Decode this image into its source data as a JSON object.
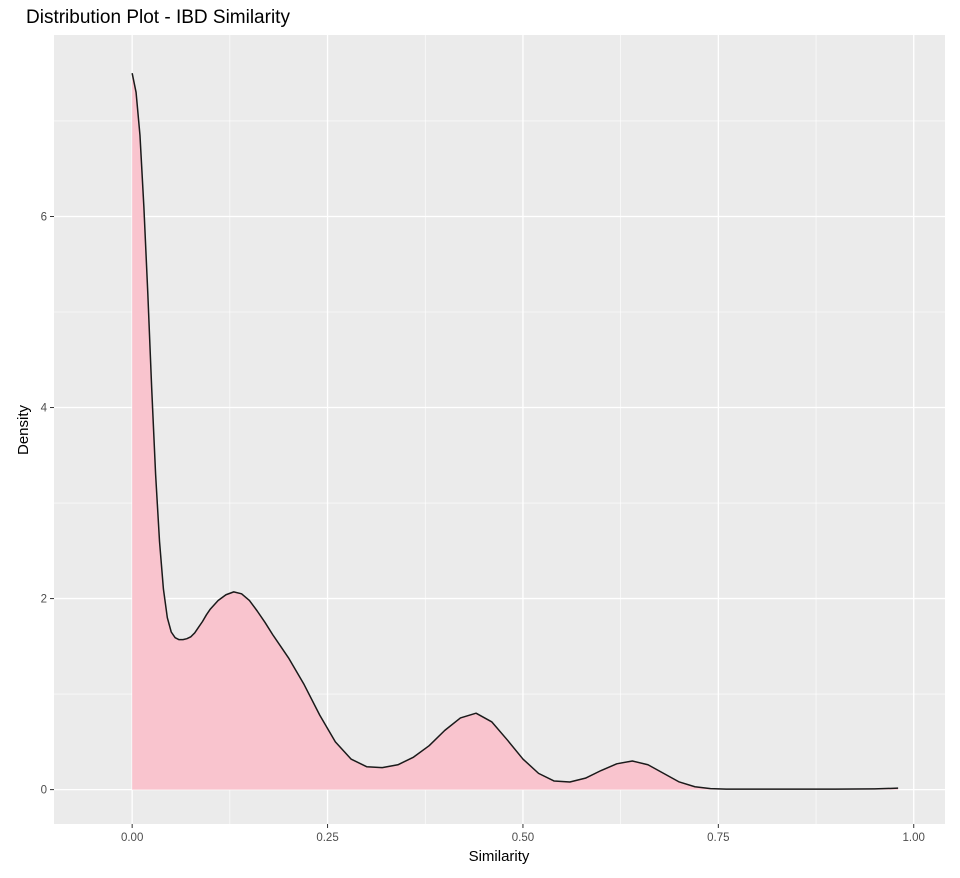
{
  "chart_data": {
    "type": "area",
    "title": "Distribution Plot - IBD Similarity",
    "xlabel": "Similarity",
    "ylabel": "Density",
    "xlim": [
      -0.1,
      1.04
    ],
    "ylim": [
      -0.36,
      7.9
    ],
    "x_ticks": [
      {
        "value": 0,
        "label": "0.00"
      },
      {
        "value": 0.25,
        "label": "0.25"
      },
      {
        "value": 0.5,
        "label": "0.50"
      },
      {
        "value": 0.75,
        "label": "0.75"
      },
      {
        "value": 1.0,
        "label": "1.00"
      }
    ],
    "y_ticks": [
      {
        "value": 0,
        "label": "0"
      },
      {
        "value": 2,
        "label": "2"
      },
      {
        "value": 4,
        "label": "4"
      },
      {
        "value": 6,
        "label": "6"
      }
    ],
    "grid": true,
    "fill_color": "#f9c4ce",
    "line_color": "#1a1a1a",
    "panel_color": "#ebebeb",
    "grid_color": "#ffffff",
    "series": [
      {
        "x": [
          0.0,
          0.005,
          0.01,
          0.015,
          0.02,
          0.025,
          0.03,
          0.035,
          0.04,
          0.045,
          0.05,
          0.055,
          0.06,
          0.065,
          0.07,
          0.075,
          0.08,
          0.085,
          0.09,
          0.095,
          0.1,
          0.11,
          0.12,
          0.13,
          0.14,
          0.15,
          0.16,
          0.17,
          0.18,
          0.19,
          0.2,
          0.22,
          0.24,
          0.26,
          0.28,
          0.3,
          0.32,
          0.34,
          0.36,
          0.38,
          0.4,
          0.42,
          0.44,
          0.46,
          0.48,
          0.5,
          0.52,
          0.54,
          0.56,
          0.58,
          0.6,
          0.62,
          0.64,
          0.66,
          0.68,
          0.7,
          0.72,
          0.74,
          0.76,
          0.8,
          0.85,
          0.9,
          0.95,
          0.98
        ],
        "y": [
          7.5,
          7.3,
          6.85,
          6.1,
          5.2,
          4.2,
          3.3,
          2.6,
          2.1,
          1.8,
          1.65,
          1.59,
          1.57,
          1.57,
          1.58,
          1.6,
          1.64,
          1.7,
          1.76,
          1.83,
          1.89,
          1.98,
          2.04,
          2.07,
          2.05,
          1.98,
          1.87,
          1.75,
          1.62,
          1.5,
          1.38,
          1.1,
          0.78,
          0.5,
          0.32,
          0.24,
          0.23,
          0.26,
          0.34,
          0.46,
          0.62,
          0.75,
          0.8,
          0.71,
          0.52,
          0.32,
          0.17,
          0.09,
          0.08,
          0.12,
          0.2,
          0.27,
          0.3,
          0.26,
          0.17,
          0.08,
          0.03,
          0.01,
          0.005,
          0.005,
          0.005,
          0.005,
          0.008,
          0.015
        ]
      }
    ]
  }
}
